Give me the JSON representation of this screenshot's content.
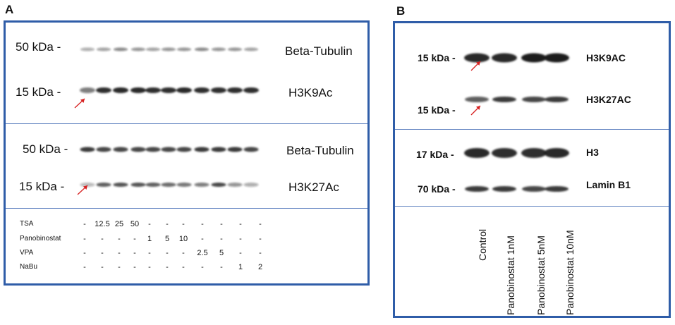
{
  "panels": {
    "a": {
      "letter": "A",
      "blot1": {
        "mw_top": "50 kDa -",
        "prot_top": "Beta-Tubulin",
        "mw_bottom": "15 kDa -",
        "prot_bottom": "H3K9Ac"
      },
      "blot2": {
        "mw_top": "50 kDa -",
        "prot_top": "Beta-Tubulin",
        "mw_bottom": "15 kDa -",
        "prot_bottom": "H3K27Ac"
      },
      "treatments": [
        {
          "name": "TSA",
          "values": [
            "-",
            "12.5",
            "25",
            "50",
            "-",
            "-",
            "-",
            "-",
            "-",
            "-",
            "-"
          ]
        },
        {
          "name": "Panobinostat",
          "values": [
            "-",
            "-",
            "-",
            "-",
            "1",
            "5",
            "10",
            "-",
            "-",
            "-",
            "-"
          ]
        },
        {
          "name": "VPA",
          "values": [
            "-",
            "-",
            "-",
            "-",
            "-",
            "-",
            "-",
            "2.5",
            "5",
            "-",
            "-"
          ]
        },
        {
          "name": "NaBu",
          "values": [
            "-",
            "-",
            "-",
            "-",
            "-",
            "-",
            "-",
            "-",
            "-",
            "1",
            "2"
          ]
        }
      ]
    },
    "b": {
      "letter": "B",
      "blot1": {
        "mw_top": "15 kDa -",
        "prot_top": "H3K9AC",
        "mw_bottom": "15 kDa -",
        "prot_bottom": "H3K27AC"
      },
      "blot2": {
        "mw_top": "17 kDa -",
        "prot_top": "H3",
        "mw_bottom": "70 kDa -",
        "prot_bottom": "Lamin B1"
      },
      "lanes": [
        "Control",
        "Panobinostat 1nM",
        "Panobinostat 5nM",
        "Panobinostat 10nM"
      ]
    }
  },
  "colors": {
    "border": "#2f5da8",
    "divider": "#5c7fbf",
    "band": "#1a1a1a",
    "arrow": "#d62020"
  },
  "band_intensity": {
    "a_beta_tubulin_1": [
      0.35,
      0.4,
      0.5,
      0.45,
      0.4,
      0.45,
      0.45,
      0.5,
      0.45,
      0.45,
      0.4
    ],
    "a_h3k9ac": [
      0.55,
      0.9,
      0.95,
      0.95,
      0.9,
      0.9,
      0.95,
      0.9,
      0.9,
      0.9,
      0.9
    ],
    "a_beta_tubulin_2": [
      0.85,
      0.8,
      0.8,
      0.8,
      0.8,
      0.8,
      0.8,
      0.85,
      0.85,
      0.85,
      0.8
    ],
    "a_h3k27ac": [
      0.3,
      0.7,
      0.75,
      0.75,
      0.7,
      0.65,
      0.6,
      0.55,
      0.8,
      0.45,
      0.35
    ],
    "b_h3k9ac": [
      0.95,
      0.95,
      1.0,
      1.0
    ],
    "b_h3k27ac": [
      0.7,
      0.85,
      0.8,
      0.85
    ],
    "b_h3": [
      0.95,
      0.9,
      0.9,
      0.95
    ],
    "b_lamin_b1": [
      0.85,
      0.85,
      0.8,
      0.85
    ]
  }
}
